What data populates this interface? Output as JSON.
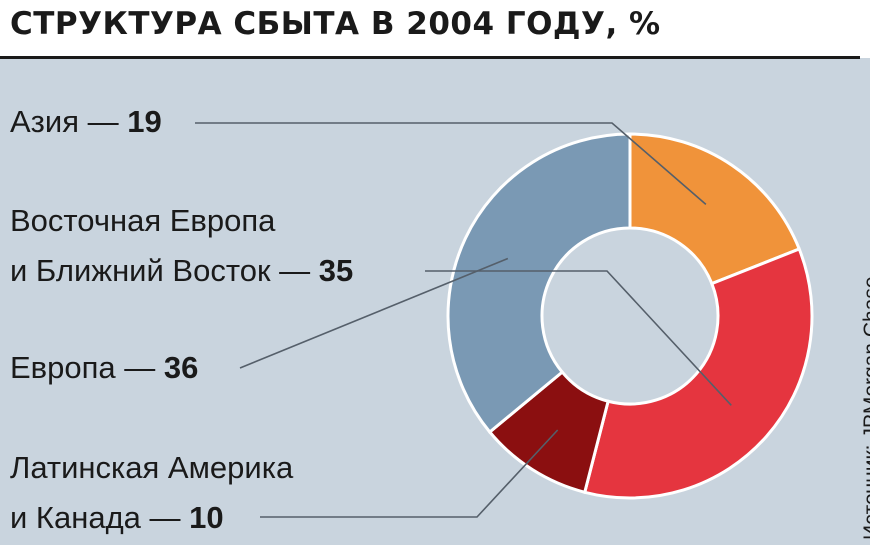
{
  "chart_data": {
    "type": "pie",
    "donut": true,
    "title": "СТРУКТУРА СБЫТА В 2004 ГОДУ, %",
    "unit": "%",
    "slices": [
      {
        "name": "Азия",
        "value": 19,
        "color": "#f0933a"
      },
      {
        "name": "Восточная Европа и Ближний Восток",
        "value": 35,
        "color": "#e5353f"
      },
      {
        "name": "Латинская Америка и Канада",
        "value": 10,
        "color": "#8b0f10"
      },
      {
        "name": "Европа",
        "value": 36,
        "color": "#7a99b4"
      }
    ]
  },
  "labels": {
    "asia": {
      "name": "Азия",
      "dash": " — ",
      "value": "19"
    },
    "eeme": {
      "line1": "Восточная Европа",
      "line2": "и Ближний Восток",
      "dash": " — ",
      "value": "35"
    },
    "europe": {
      "name": "Европа",
      "dash": " — ",
      "value": "36"
    },
    "latam": {
      "line1": "Латинская Америка",
      "line2": "и Канада",
      "dash": " — ",
      "value": "10"
    }
  },
  "source": "Источник: JPMorgan Chase",
  "colors": {
    "background": "#c9d4de",
    "leader": "#555f6a",
    "slice_border": "#ffffff"
  }
}
